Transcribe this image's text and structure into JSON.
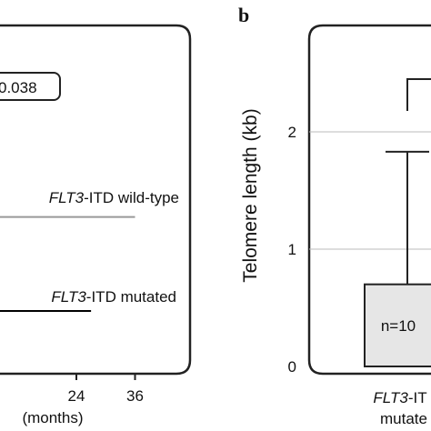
{
  "chart_data": [
    {
      "type": "line",
      "panel_label": "",
      "pvalue_label": "0.038",
      "xlabel": "(months)",
      "x_ticks": [
        24,
        36
      ],
      "xlim": [
        0,
        40
      ],
      "series": [
        {
          "name_italic": "FLT3",
          "name_rest": "-ITD wild-type",
          "color": "#999999",
          "x": [
            0,
            36
          ],
          "y": [
            0.45,
            0.45
          ]
        },
        {
          "name_italic": "FLT3",
          "name_rest": "-ITD mutated",
          "color": "#000000",
          "x": [
            0,
            27
          ],
          "y": [
            0.18,
            0.18
          ]
        }
      ]
    },
    {
      "type": "bar",
      "panel_label": "b",
      "ylabel": "Telomere length (kb)",
      "y_ticks": [
        0,
        1,
        2
      ],
      "ylim": [
        0,
        3.1
      ],
      "bar_fill": "#e6e6e6",
      "categories": [
        {
          "label_italic": "FLT3",
          "label_rest": "-IT",
          "label_line2": "mutate"
        }
      ],
      "values": [
        0.7
      ],
      "error_upper": [
        1.83
      ],
      "n_labels": [
        "n=10"
      ],
      "significance_bracket_y": 2.45
    }
  ]
}
